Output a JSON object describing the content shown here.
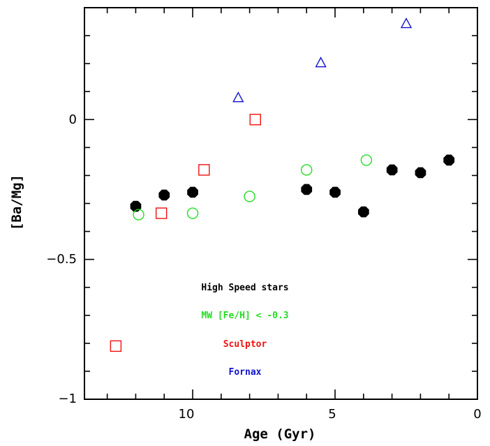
{
  "chart_data": {
    "type": "scatter",
    "xlabel": "Age (Gyr)",
    "ylabel": "[Ba/Mg]",
    "xlim": [
      13.8,
      0
    ],
    "ylim": [
      -1,
      0.4
    ],
    "x_ticks": [
      "10",
      "5",
      "0"
    ],
    "y_ticks": [
      "0",
      "−0.5",
      "−1"
    ],
    "legend_position": "lower-center, inside plot",
    "series": [
      {
        "name": "High Speed stars",
        "marker": "filled-octagon",
        "color": "#000000",
        "points": [
          [
            12,
            -0.31
          ],
          [
            11,
            -0.27
          ],
          [
            10,
            -0.26
          ],
          [
            6,
            -0.25
          ],
          [
            5,
            -0.26
          ],
          [
            4,
            -0.33
          ],
          [
            3,
            -0.18
          ],
          [
            2,
            -0.19
          ],
          [
            1,
            -0.145
          ]
        ]
      },
      {
        "name": "MW [Fe/H] < -0.3",
        "marker": "open-circle",
        "color": "#22dd22",
        "points": [
          [
            11.9,
            -0.34
          ],
          [
            10,
            -0.335
          ],
          [
            8,
            -0.275
          ],
          [
            6,
            -0.18
          ],
          [
            3.9,
            -0.145
          ]
        ]
      },
      {
        "name": "Sculptor",
        "marker": "open-square",
        "color": "#ee1111",
        "points": [
          [
            12.7,
            -0.81
          ],
          [
            11.1,
            -0.335
          ],
          [
            9.6,
            -0.18
          ],
          [
            7.8,
            0.0
          ]
        ]
      },
      {
        "name": "Fornax",
        "marker": "open-triangle",
        "color": "#1111cc",
        "points": [
          [
            8.4,
            0.08
          ],
          [
            5.5,
            0.205
          ],
          [
            2.5,
            0.345
          ]
        ]
      }
    ]
  }
}
